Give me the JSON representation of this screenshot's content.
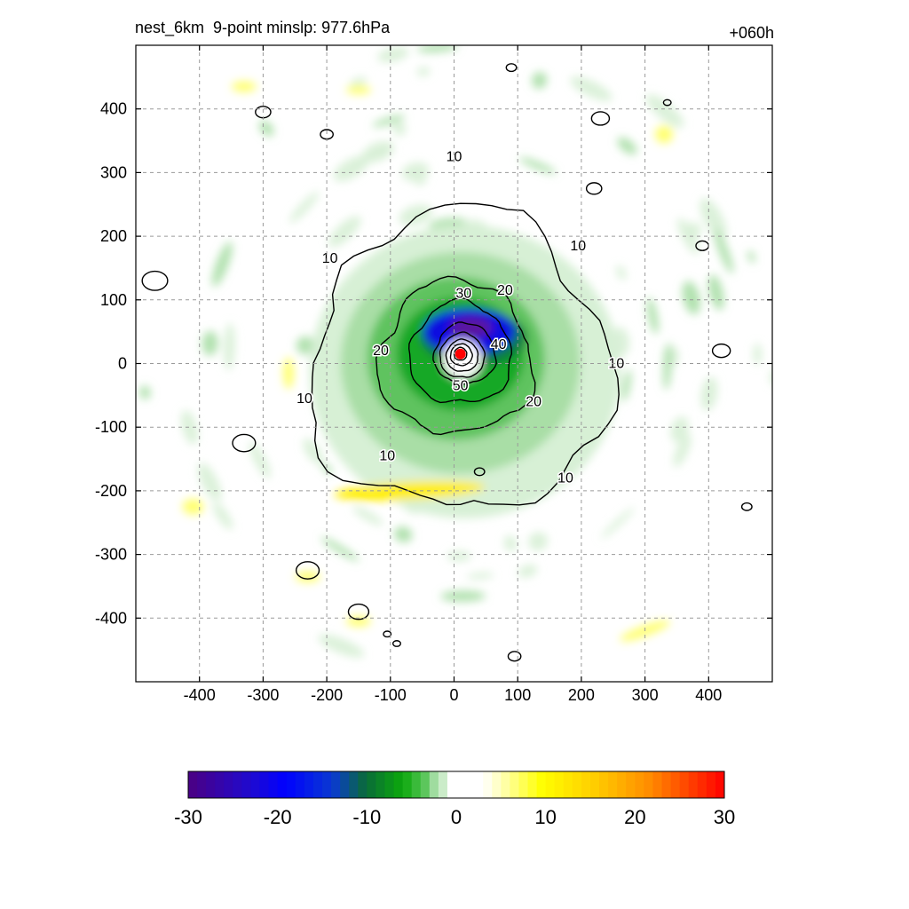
{
  "header": {
    "title": "nest_6km  9-point minslp: 977.6hPa",
    "forecast_hour": "+060h"
  },
  "colors": {
    "contour_line": "#000000",
    "grid_line": "#9a9a9a",
    "center_marker": "#ff0000",
    "scale_stops": [
      "#4b0082",
      "#0000ff",
      "#0a6a3a",
      "#1ea81e",
      "#bfe6bf",
      "#ffffff",
      "#ffffa0",
      "#ffff00",
      "#ffa500",
      "#ff0000"
    ]
  },
  "chart_data": {
    "type": "heatmap",
    "title": "nest_6km  9-point minslp: 977.6hPa",
    "annotation": "+060h",
    "xlabel": "",
    "ylabel": "",
    "xlim": [
      -500,
      500
    ],
    "ylim": [
      -500,
      500
    ],
    "xticks": [
      -400,
      -300,
      -200,
      -100,
      0,
      100,
      200,
      300,
      400
    ],
    "yticks": [
      -400,
      -300,
      -200,
      -100,
      0,
      100,
      200,
      300,
      400
    ],
    "grid": true,
    "center": {
      "x": 10,
      "y": 15,
      "marker": "red dot"
    },
    "contour_levels": [
      10,
      20,
      30,
      40,
      50
    ],
    "contour_labels": [
      {
        "text": "10",
        "x": 0,
        "y": 325
      },
      {
        "text": "10",
        "x": -195,
        "y": 165
      },
      {
        "text": "10",
        "x": 195,
        "y": 185
      },
      {
        "text": "10",
        "x": 255,
        "y": 0
      },
      {
        "text": "10",
        "x": -235,
        "y": -55
      },
      {
        "text": "10",
        "x": -105,
        "y": -145
      },
      {
        "text": "10",
        "x": 175,
        "y": -180
      },
      {
        "text": "20",
        "x": 80,
        "y": 115
      },
      {
        "text": "20",
        "x": -115,
        "y": 20
      },
      {
        "text": "20",
        "x": 125,
        "y": -60
      },
      {
        "text": "30",
        "x": 15,
        "y": 110
      },
      {
        "text": "40",
        "x": 70,
        "y": 30
      },
      {
        "text": "50",
        "x": 10,
        "y": -35
      }
    ],
    "colorbar": {
      "min": -30,
      "max": 30,
      "tick_labels": [
        "-30",
        "-20",
        "-10",
        "0",
        "10",
        "20",
        "30"
      ]
    }
  }
}
